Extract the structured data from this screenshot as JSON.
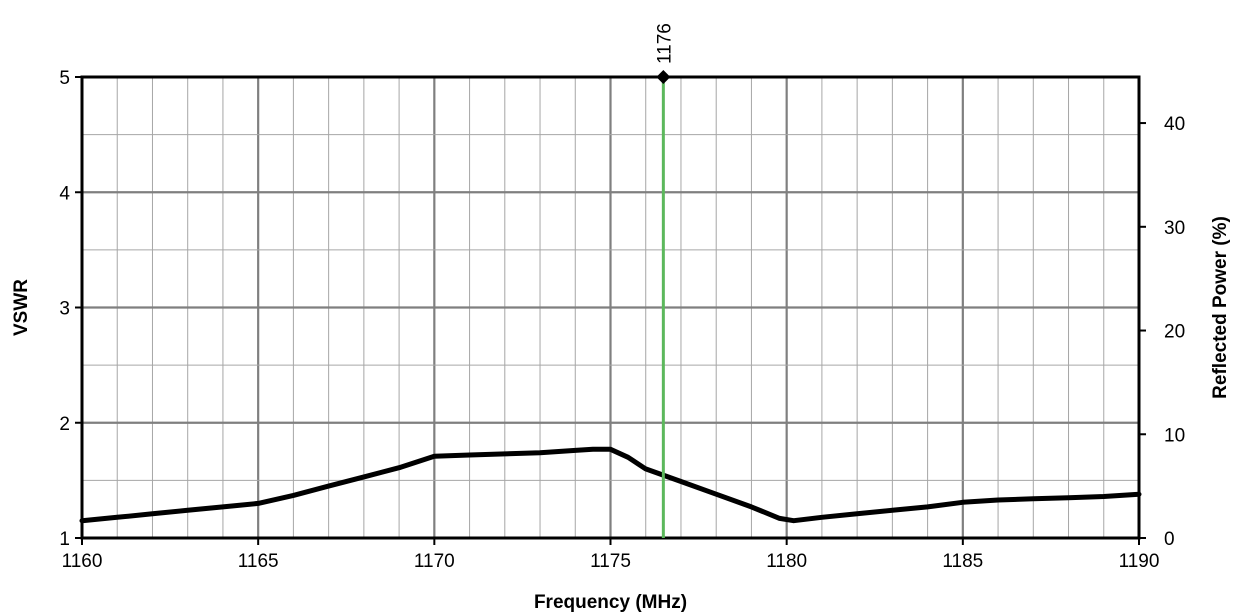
{
  "chart_data": {
    "type": "line",
    "xlabel": "Frequency (MHz)",
    "ylabel": "VSWR",
    "y2label": "Reflected Power (%)",
    "xlim": [
      1160,
      1190
    ],
    "ylim": [
      1,
      5
    ],
    "y2lim": [
      0,
      44.44
    ],
    "xticks": [
      1160,
      1165,
      1170,
      1175,
      1180,
      1185,
      1190
    ],
    "yticks": [
      1,
      2,
      3,
      4,
      5
    ],
    "y2ticks": [
      0,
      10,
      20,
      30,
      40
    ],
    "x_minor_step": 1,
    "y_minor_step": 0.5,
    "grid": true,
    "series": [
      {
        "x": [
          1160,
          1161,
          1162,
          1163,
          1164,
          1165,
          1166,
          1167,
          1168,
          1169,
          1170,
          1171,
          1172,
          1173,
          1174,
          1174.5,
          1175,
          1175.5,
          1176,
          1177,
          1178,
          1179,
          1179.8,
          1180.2,
          1181,
          1182,
          1183,
          1184,
          1185,
          1186,
          1187,
          1188,
          1189,
          1190
        ],
        "values": [
          1.15,
          1.18,
          1.21,
          1.24,
          1.27,
          1.3,
          1.37,
          1.45,
          1.53,
          1.61,
          1.71,
          1.72,
          1.73,
          1.74,
          1.76,
          1.77,
          1.77,
          1.7,
          1.6,
          1.49,
          1.38,
          1.27,
          1.17,
          1.15,
          1.18,
          1.21,
          1.24,
          1.27,
          1.31,
          1.33,
          1.34,
          1.35,
          1.36,
          1.38
        ],
        "color": "#000000"
      }
    ],
    "marker": {
      "x": 1176.5,
      "label": "1176",
      "color": "#5cb85c"
    }
  }
}
